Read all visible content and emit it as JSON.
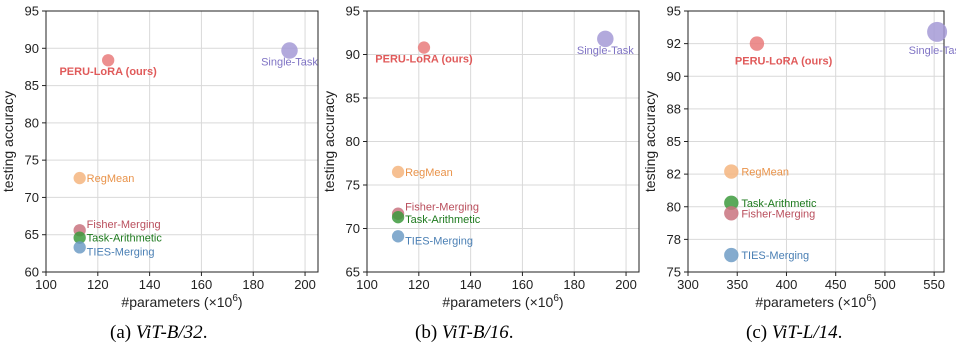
{
  "chart_data": [
    {
      "type": "scatter",
      "xlabel": "#parameters (×10",
      "xlabel_sup": "6",
      "xlabel_close": ")",
      "ylabel": "testing accuracy",
      "xlim": [
        100,
        205
      ],
      "ylim": [
        60,
        95
      ],
      "xticks": [
        "100",
        "120",
        "140",
        "160",
        "180",
        "200"
      ],
      "xtick_values": [
        100,
        120,
        140,
        160,
        180,
        200
      ],
      "yticks": [
        "60",
        "65",
        "70",
        "75",
        "80",
        "85",
        "90",
        "95"
      ],
      "ytick_values": [
        60,
        65,
        70,
        75,
        80,
        85,
        90,
        95
      ],
      "grid": true,
      "caption_prefix": "(a) ",
      "caption_model": "ViT-B/32",
      "caption_suffix": ".",
      "points": [
        {
          "label": "PERU-LoRA (ours)",
          "x": 124,
          "y": 88.4,
          "size": 0.45,
          "color": "#e97b7b",
          "text_color": "#e05a5a",
          "bold": true,
          "anchor": "middle",
          "dx": 0,
          "dy": 15
        },
        {
          "label": "Single-Task",
          "x": 194,
          "y": 89.7,
          "size": 0.75,
          "color": "#a49ad6",
          "text_color": "#7f73c4",
          "bold": false,
          "anchor": "middle",
          "dx": 0,
          "dy": 15
        },
        {
          "label": "RegMean",
          "x": 113,
          "y": 72.6,
          "size": 0.45,
          "color": "#f5b57f",
          "text_color": "#e9934a",
          "bold": false,
          "anchor": "start",
          "dx": 7,
          "dy": 4
        },
        {
          "label": "Fisher-Merging",
          "x": 113,
          "y": 65.6,
          "size": 0.45,
          "color": "#c9737f",
          "text_color": "#b94e5c",
          "bold": false,
          "anchor": "start",
          "dx": 7,
          "dy": -2
        },
        {
          "label": "Task-Arithmetic",
          "x": 113,
          "y": 64.6,
          "size": 0.45,
          "color": "#3d9a3d",
          "text_color": "#1e7a1e",
          "bold": false,
          "anchor": "start",
          "dx": 7,
          "dy": 4
        },
        {
          "label": "TIES-Merging",
          "x": 113,
          "y": 63.3,
          "size": 0.45,
          "color": "#6f9cc6",
          "text_color": "#4a7fb4",
          "bold": false,
          "anchor": "start",
          "dx": 7,
          "dy": 8
        }
      ]
    },
    {
      "type": "scatter",
      "xlabel": "#parameters (×10",
      "xlabel_sup": "6",
      "xlabel_close": ")",
      "ylabel": "testing accuracy",
      "xlim": [
        100,
        205
      ],
      "ylim": [
        65,
        95
      ],
      "xticks": [
        "100",
        "120",
        "140",
        "160",
        "180",
        "200"
      ],
      "xtick_values": [
        100,
        120,
        140,
        160,
        180,
        200
      ],
      "yticks": [
        "65",
        "70",
        "75",
        "80",
        "85",
        "90",
        "95"
      ],
      "ytick_values": [
        65,
        70,
        75,
        80,
        85,
        90,
        95
      ],
      "grid": true,
      "caption_prefix": "(b) ",
      "caption_model": "ViT-B/16",
      "caption_suffix": ".",
      "points": [
        {
          "label": "PERU-LoRA (ours)",
          "x": 122,
          "y": 90.8,
          "size": 0.45,
          "color": "#e97b7b",
          "text_color": "#e05a5a",
          "bold": true,
          "anchor": "middle",
          "dx": 0,
          "dy": 15
        },
        {
          "label": "Single-Task",
          "x": 192,
          "y": 91.8,
          "size": 0.75,
          "color": "#a49ad6",
          "text_color": "#7f73c4",
          "bold": false,
          "anchor": "middle",
          "dx": 0,
          "dy": 15
        },
        {
          "label": "RegMean",
          "x": 112,
          "y": 76.5,
          "size": 0.45,
          "color": "#f5b57f",
          "text_color": "#e9934a",
          "bold": false,
          "anchor": "start",
          "dx": 7,
          "dy": 4
        },
        {
          "label": "Fisher-Merging",
          "x": 112,
          "y": 71.7,
          "size": 0.45,
          "color": "#c9737f",
          "text_color": "#b94e5c",
          "bold": false,
          "anchor": "start",
          "dx": 7,
          "dy": -3
        },
        {
          "label": "Task-Arithmetic",
          "x": 112,
          "y": 71.3,
          "size": 0.45,
          "color": "#3d9a3d",
          "text_color": "#1e7a1e",
          "bold": false,
          "anchor": "start",
          "dx": 7,
          "dy": 6
        },
        {
          "label": "TIES-Merging",
          "x": 112,
          "y": 69.1,
          "size": 0.45,
          "color": "#6f9cc6",
          "text_color": "#4a7fb4",
          "bold": false,
          "anchor": "start",
          "dx": 7,
          "dy": 8
        }
      ]
    },
    {
      "type": "scatter",
      "xlabel": "#parameters (×10",
      "xlabel_sup": "6",
      "xlabel_close": ")",
      "ylabel": "testing accuracy",
      "xlim": [
        300,
        560
      ],
      "ylim": [
        75,
        95
      ],
      "xticks": [
        "300",
        "350",
        "400",
        "450",
        "500",
        "550"
      ],
      "xtick_values": [
        300,
        350,
        400,
        450,
        500,
        550
      ],
      "yticks": [
        "75",
        "78",
        "80",
        "82",
        "85",
        "88",
        "90",
        "92",
        "95"
      ],
      "ytick_values": [
        75,
        77.5,
        80,
        82.5,
        85,
        87.5,
        90,
        92.5,
        95
      ],
      "grid": true,
      "caption_prefix": "(c) ",
      "caption_model": "ViT-L/14",
      "caption_suffix": ".",
      "points": [
        {
          "label": "PERU-LoRA (ours)",
          "x": 370,
          "y": 92.5,
          "size": 0.6,
          "color": "#e97b7b",
          "text_color": "#e05a5a",
          "bold": true,
          "anchor": "start",
          "dx": -22,
          "dy": 21
        },
        {
          "label": "Single-Task",
          "x": 553,
          "y": 93.4,
          "size": 1.0,
          "color": "#a49ad6",
          "text_color": "#7f73c4",
          "bold": false,
          "anchor": "middle",
          "dx": 0,
          "dy": 22
        },
        {
          "label": "RegMean",
          "x": 344,
          "y": 82.7,
          "size": 0.6,
          "color": "#f5b57f",
          "text_color": "#e9934a",
          "bold": false,
          "anchor": "start",
          "dx": 10,
          "dy": 4
        },
        {
          "label": "Task-Arithmetic",
          "x": 344,
          "y": 80.3,
          "size": 0.6,
          "color": "#3d9a3d",
          "text_color": "#1e7a1e",
          "bold": false,
          "anchor": "start",
          "dx": 10,
          "dy": 4
        },
        {
          "label": "Fisher-Merging",
          "x": 344,
          "y": 79.5,
          "size": 0.6,
          "color": "#c9737f",
          "text_color": "#b94e5c",
          "bold": false,
          "anchor": "start",
          "dx": 10,
          "dy": 4
        },
        {
          "label": "TIES-Merging",
          "x": 344,
          "y": 76.3,
          "size": 0.6,
          "color": "#6f9cc6",
          "text_color": "#4a7fb4",
          "bold": false,
          "anchor": "start",
          "dx": 10,
          "dy": 4
        }
      ]
    }
  ]
}
